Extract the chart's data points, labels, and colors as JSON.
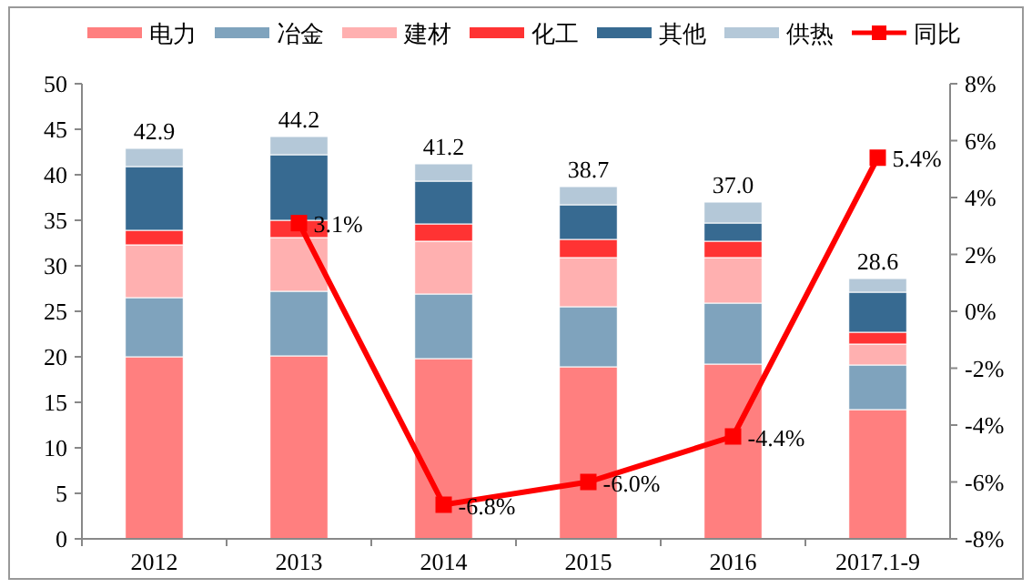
{
  "chart_data": {
    "type": "bar",
    "stacked": true,
    "categories": [
      "2012",
      "2013",
      "2014",
      "2015",
      "2016",
      "2017.1-9"
    ],
    "series": [
      {
        "name": "电力",
        "color": "#ff7f7f",
        "values": [
          20,
          20.1,
          19.8,
          18.9,
          19.2,
          14.2
        ]
      },
      {
        "name": "冶金",
        "color": "#7fa3bd",
        "values": [
          6.5,
          7.1,
          7.1,
          6.6,
          6.7,
          4.9
        ]
      },
      {
        "name": "建材",
        "color": "#ffb0b0",
        "values": [
          5.8,
          5.9,
          5.8,
          5.4,
          5.0,
          2.3
        ]
      },
      {
        "name": "化工",
        "color": "#ff3333",
        "values": [
          1.6,
          1.9,
          1.9,
          2.0,
          1.8,
          1.3
        ]
      },
      {
        "name": "其他",
        "color": "#376a91",
        "values": [
          7.0,
          7.2,
          4.7,
          3.8,
          2.0,
          4.4
        ]
      },
      {
        "name": "供热",
        "color": "#b4c8d8",
        "values": [
          2.0,
          2.0,
          1.9,
          2.0,
          2.3,
          1.5
        ]
      },
      {
        "name": "同比",
        "type": "line",
        "axis": "y2",
        "color": "#ff0000",
        "marker": "square",
        "values": [
          null,
          3.1,
          -6.8,
          -6.0,
          -4.4,
          5.4
        ],
        "value_labels": [
          null,
          "3.1%",
          "-6.8%",
          "-6.0%",
          "-4.4%",
          "5.4%"
        ]
      }
    ],
    "totals": [
      "42.9",
      "44.2",
      "41.2",
      "38.7",
      "37.0",
      "28.6"
    ],
    "ylim": [
      0,
      50
    ],
    "yticks": [
      0,
      5,
      10,
      15,
      20,
      25,
      30,
      35,
      40,
      45,
      50
    ],
    "y2lim": [
      -8,
      8
    ],
    "y2ticks": [
      {
        "value": -8,
        "label": "-8%"
      },
      {
        "value": -6,
        "label": "-6%"
      },
      {
        "value": -4,
        "label": "-4%"
      },
      {
        "value": -2,
        "label": "-2%"
      },
      {
        "value": 0,
        "label": "0%"
      },
      {
        "value": 2,
        "label": "2%"
      },
      {
        "value": 4,
        "label": "4%"
      },
      {
        "value": 6,
        "label": "6%"
      },
      {
        "value": 8,
        "label": "8%"
      }
    ],
    "legend": "top",
    "grid": false
  }
}
